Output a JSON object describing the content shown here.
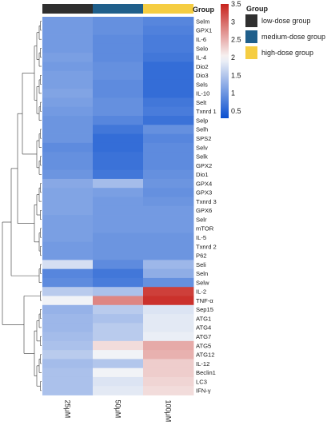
{
  "chart_data": {
    "type": "heatmap",
    "columns": [
      "25μM",
      "50μM",
      "100μM"
    ],
    "column_groups": [
      "low-dose group",
      "medium-dose group",
      "high-dose group"
    ],
    "group_annotation_label": "Group",
    "group_colors": {
      "low-dose group": "#2f2f2f",
      "medium-dose group": "#1f5f8b",
      "high-dose group": "#f5cd42"
    },
    "rows": [
      {
        "name": "Selm",
        "values": [
          1.05,
          0.95,
          0.85
        ]
      },
      {
        "name": "GPX1",
        "values": [
          1.05,
          0.95,
          0.8
        ]
      },
      {
        "name": "IL-6",
        "values": [
          1.05,
          0.9,
          0.75
        ]
      },
      {
        "name": "Selo",
        "values": [
          1.05,
          0.9,
          0.75
        ]
      },
      {
        "name": "IL-4",
        "values": [
          1.1,
          0.9,
          0.7
        ]
      },
      {
        "name": "Dio2",
        "values": [
          1.05,
          0.95,
          0.6
        ]
      },
      {
        "name": "Dio3",
        "values": [
          1.1,
          0.95,
          0.6
        ]
      },
      {
        "name": "Sels",
        "values": [
          1.1,
          0.9,
          0.6
        ]
      },
      {
        "name": "IL-10",
        "values": [
          1.15,
          0.9,
          0.6
        ]
      },
      {
        "name": "Selt",
        "values": [
          1.1,
          0.95,
          0.7
        ]
      },
      {
        "name": "Txnrd 1",
        "values": [
          1.05,
          0.95,
          0.75
        ]
      },
      {
        "name": "Selp",
        "values": [
          1.0,
          0.85,
          0.65
        ]
      },
      {
        "name": "Selh",
        "values": [
          1.0,
          0.7,
          0.95
        ]
      },
      {
        "name": "SPS2",
        "values": [
          1.0,
          0.6,
          0.85
        ]
      },
      {
        "name": "Selv",
        "values": [
          0.9,
          0.6,
          0.9
        ]
      },
      {
        "name": "Selk",
        "values": [
          0.95,
          0.65,
          0.9
        ]
      },
      {
        "name": "GPX2",
        "values": [
          0.95,
          0.65,
          0.9
        ]
      },
      {
        "name": "Dio1",
        "values": [
          1.0,
          0.7,
          0.95
        ]
      },
      {
        "name": "GPX4",
        "values": [
          1.2,
          1.4,
          1.0
        ]
      },
      {
        "name": "GPX3",
        "values": [
          1.15,
          1.1,
          0.95
        ]
      },
      {
        "name": "Txnrd 3",
        "values": [
          1.15,
          1.05,
          1.0
        ]
      },
      {
        "name": "GPX6",
        "values": [
          1.15,
          1.05,
          1.05
        ]
      },
      {
        "name": "Selr",
        "values": [
          1.1,
          1.05,
          1.05
        ]
      },
      {
        "name": "mTOR",
        "values": [
          1.1,
          1.05,
          1.05
        ]
      },
      {
        "name": "IL-5",
        "values": [
          1.1,
          1.0,
          1.0
        ]
      },
      {
        "name": "Txnrd 2",
        "values": [
          1.05,
          1.0,
          1.0
        ]
      },
      {
        "name": "P62",
        "values": [
          1.05,
          1.0,
          1.0
        ]
      },
      {
        "name": "Seli",
        "values": [
          1.75,
          0.9,
          1.35
        ]
      },
      {
        "name": "Seln",
        "values": [
          0.85,
          0.7,
          1.25
        ]
      },
      {
        "name": "Selw",
        "values": [
          0.9,
          0.75,
          0.95
        ]
      },
      {
        "name": "IL-2",
        "values": [
          1.55,
          1.45,
          3.3
        ]
      },
      {
        "name": "TNF-α",
        "values": [
          1.95,
          2.8,
          3.4
        ]
      },
      {
        "name": "Sep15",
        "values": [
          1.3,
          1.55,
          1.8
        ]
      },
      {
        "name": "ATG1",
        "values": [
          1.35,
          1.45,
          1.85
        ]
      },
      {
        "name": "ATG4",
        "values": [
          1.35,
          1.55,
          1.85
        ]
      },
      {
        "name": "ATG7",
        "values": [
          1.4,
          1.55,
          1.9
        ]
      },
      {
        "name": "ATG5",
        "values": [
          1.45,
          2.2,
          2.55
        ]
      },
      {
        "name": "ATG12",
        "values": [
          1.55,
          1.95,
          2.5
        ]
      },
      {
        "name": "IL-12",
        "values": [
          1.4,
          1.5,
          2.3
        ]
      },
      {
        "name": "Beclin1",
        "values": [
          1.45,
          1.95,
          2.3
        ]
      },
      {
        "name": "LC3",
        "values": [
          1.45,
          1.8,
          2.25
        ]
      },
      {
        "name": "IFN-γ",
        "values": [
          1.45,
          1.85,
          2.2
        ]
      }
    ],
    "scale": {
      "min": 0.3,
      "mid": 2.0,
      "max": 3.5,
      "colors": {
        "low": "#0a4fd0",
        "mid": "#f8f8f8",
        "high": "#c8231d"
      },
      "ticks": [
        3.5,
        3,
        2.5,
        2,
        1.5,
        1,
        0.5
      ]
    },
    "dendrogram": "rows"
  }
}
